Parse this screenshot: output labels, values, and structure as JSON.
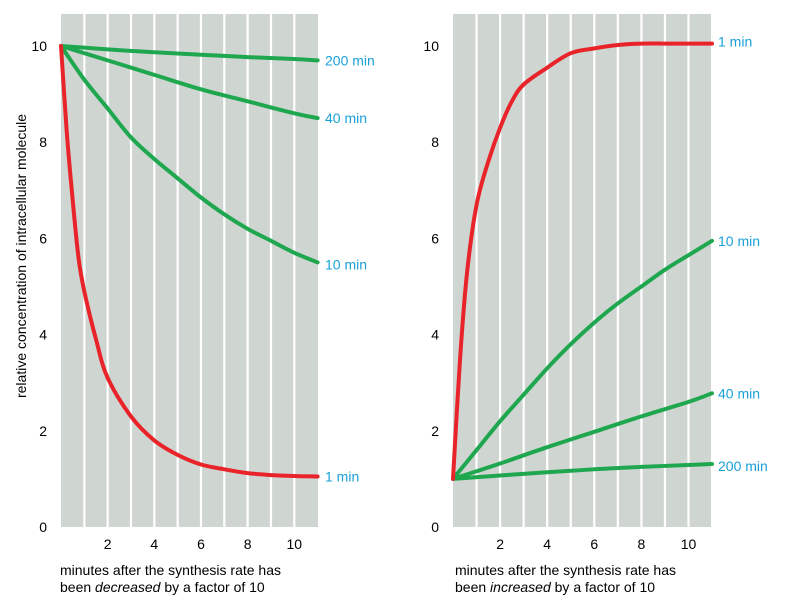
{
  "chart_data": [
    {
      "type": "line",
      "ylabel": "relative concentration of intracellular molecule",
      "xlabel_parts": [
        "minutes after the synthesis rate has",
        "been ",
        "decreased",
        " by a factor of 10"
      ],
      "xlim": [
        0,
        11
      ],
      "ylim": [
        0,
        10.8
      ],
      "x_ticks": [
        2,
        4,
        6,
        8,
        10
      ],
      "y_ticks": [
        0,
        2,
        4,
        6,
        8,
        10
      ],
      "grid": "vertical lines at each minute",
      "background_color": "#cfd5d0",
      "series": [
        {
          "name": "200 min",
          "color": "#1fa74f",
          "label_color": "#1aa0d8",
          "x": [
            0,
            2,
            4,
            6,
            8,
            10,
            11
          ],
          "y": [
            10,
            9.93,
            9.87,
            9.82,
            9.77,
            9.73,
            9.7
          ]
        },
        {
          "name": "40 min",
          "color": "#1fa74f",
          "label_color": "#1aa0d8",
          "x": [
            0,
            2,
            4,
            6,
            8,
            10,
            11
          ],
          "y": [
            10,
            9.7,
            9.4,
            9.1,
            8.85,
            8.6,
            8.5
          ]
        },
        {
          "name": "10 min",
          "color": "#1fa74f",
          "label_color": "#1aa0d8",
          "x": [
            0,
            1,
            2,
            3,
            4,
            5,
            6,
            7,
            8,
            9,
            10,
            11
          ],
          "y": [
            10,
            9.3,
            8.7,
            8.1,
            7.65,
            7.25,
            6.85,
            6.5,
            6.2,
            5.95,
            5.7,
            5.5
          ]
        },
        {
          "name": "1 min",
          "color": "#e8242a",
          "label_color": "#1aa0d8",
          "x": [
            0,
            0.25,
            0.5,
            0.75,
            1,
            1.5,
            2,
            3,
            4,
            5,
            6,
            7,
            8,
            9,
            10,
            11
          ],
          "y": [
            10,
            8.2,
            6.8,
            5.6,
            4.9,
            3.9,
            3.1,
            2.3,
            1.8,
            1.5,
            1.3,
            1.2,
            1.12,
            1.08,
            1.06,
            1.05
          ]
        }
      ]
    },
    {
      "type": "line",
      "xlabel_parts": [
        "minutes after the synthesis rate has",
        "been ",
        "increased",
        " by a factor of 10"
      ],
      "xlim": [
        0,
        11
      ],
      "ylim": [
        0,
        10.8
      ],
      "x_ticks": [
        2,
        4,
        6,
        8,
        10
      ],
      "y_ticks": [
        0,
        2,
        4,
        6,
        8,
        10
      ],
      "grid": "vertical lines at each minute",
      "background_color": "#cfd5d0",
      "series": [
        {
          "name": "1 min",
          "color": "#e8242a",
          "label_color": "#1aa0d8",
          "x": [
            0,
            0.3,
            0.6,
            1,
            1.5,
            2,
            2.5,
            3,
            4,
            5,
            6,
            7,
            8,
            9,
            10,
            11
          ],
          "y": [
            1,
            3.5,
            5.3,
            6.7,
            7.6,
            8.3,
            8.85,
            9.2,
            9.55,
            9.85,
            9.95,
            10.02,
            10.05,
            10.05,
            10.05,
            10.05
          ]
        },
        {
          "name": "10 min",
          "color": "#1fa74f",
          "label_color": "#1aa0d8",
          "x": [
            0,
            1,
            2,
            3,
            4,
            5,
            6,
            7,
            8,
            9,
            10,
            11
          ],
          "y": [
            1,
            1.6,
            2.2,
            2.75,
            3.3,
            3.8,
            4.25,
            4.65,
            5.0,
            5.35,
            5.65,
            5.95
          ]
        },
        {
          "name": "40 min",
          "color": "#1fa74f",
          "label_color": "#1aa0d8",
          "x": [
            0,
            2,
            4,
            6,
            8,
            10,
            11
          ],
          "y": [
            1,
            1.32,
            1.66,
            1.98,
            2.3,
            2.6,
            2.78
          ]
        },
        {
          "name": "200 min",
          "color": "#1fa74f",
          "label_color": "#1aa0d8",
          "x": [
            0,
            2,
            4,
            6,
            8,
            10,
            11
          ],
          "y": [
            1,
            1.07,
            1.14,
            1.2,
            1.25,
            1.29,
            1.31
          ]
        }
      ]
    }
  ]
}
